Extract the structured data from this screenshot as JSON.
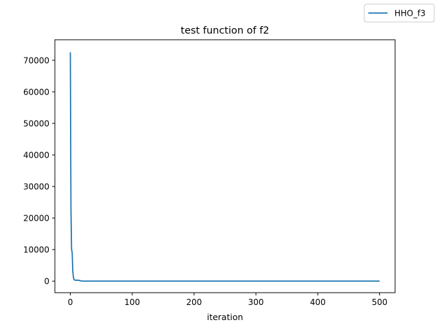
{
  "chart_data": {
    "type": "line",
    "title": "test function of f2",
    "xlabel": "iteration",
    "ylabel": "",
    "xlim": [
      -25,
      525
    ],
    "ylim": [
      -3650,
      76500
    ],
    "xticks": [
      0,
      100,
      200,
      300,
      400,
      500
    ],
    "yticks": [
      0,
      10000,
      20000,
      30000,
      40000,
      50000,
      60000,
      70000
    ],
    "grid": false,
    "legend_position": "top-right",
    "series": [
      {
        "name": "HHO_f3",
        "color": "#1f77b4",
        "x": [
          0,
          1,
          2,
          3,
          4,
          5,
          6,
          7,
          8,
          10,
          12,
          14,
          16,
          18,
          20,
          30,
          50,
          100,
          150,
          200,
          250,
          300,
          350,
          400,
          450,
          500
        ],
        "y": [
          72500,
          23000,
          10000,
          9000,
          3000,
          1200,
          500,
          350,
          300,
          320,
          300,
          250,
          150,
          60,
          30,
          20,
          15,
          12,
          10,
          10,
          10,
          10,
          10,
          10,
          10,
          10
        ]
      }
    ]
  }
}
